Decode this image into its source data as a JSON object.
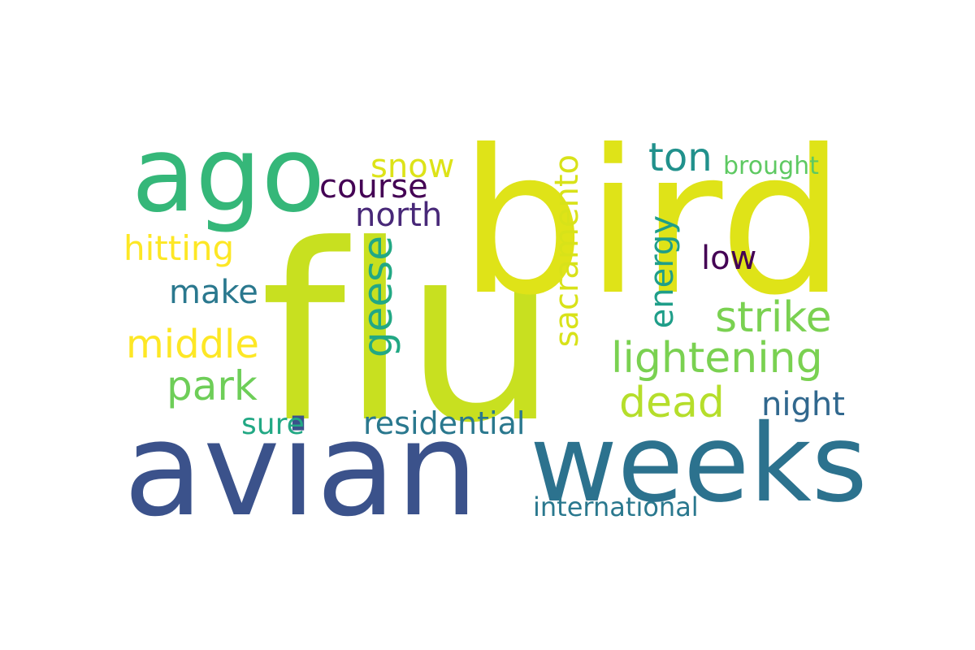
{
  "words": [
    {
      "text": "flu",
      "color": "#c8e020"
    },
    {
      "text": "bird",
      "color": "#dfe318"
    },
    {
      "text": "avian",
      "color": "#3b528b"
    },
    {
      "text": "weeks",
      "color": "#2c728e"
    },
    {
      "text": "ago",
      "color": "#35b779"
    },
    {
      "text": "ton",
      "color": "#21918c"
    },
    {
      "text": "brought",
      "color": "#5ec962"
    },
    {
      "text": "snow",
      "color": "#dde318"
    },
    {
      "text": "course",
      "color": "#440154"
    },
    {
      "text": "north",
      "color": "#482878"
    },
    {
      "text": "hitting",
      "color": "#fde725"
    },
    {
      "text": "make",
      "color": "#2a788e"
    },
    {
      "text": "middle",
      "color": "#fde725"
    },
    {
      "text": "park",
      "color": "#6ece58"
    },
    {
      "text": "sure",
      "color": "#22a884"
    },
    {
      "text": "residential",
      "color": "#2a788e"
    },
    {
      "text": "strike",
      "color": "#7ad151"
    },
    {
      "text": "lightening",
      "color": "#7ad151"
    },
    {
      "text": "dead",
      "color": "#b5de2b"
    },
    {
      "text": "night",
      "color": "#31688e"
    },
    {
      "text": "low",
      "color": "#440154"
    },
    {
      "text": "international",
      "color": "#2a788e"
    },
    {
      "text": "geese",
      "color": "#22a884"
    },
    {
      "text": "sacramento",
      "color": "#d8e219"
    },
    {
      "text": "energy",
      "color": "#1f9e89"
    }
  ]
}
